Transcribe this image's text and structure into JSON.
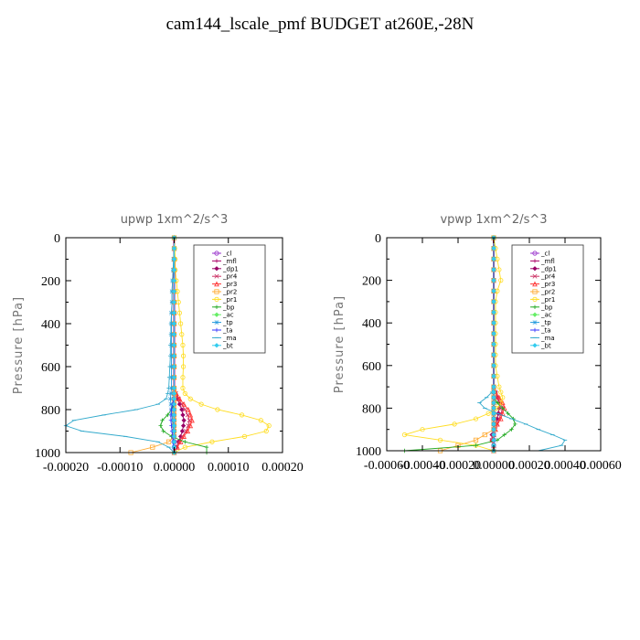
{
  "title": "cam144_lscale_pmf  BUDGET at260E,-28N",
  "legend_labels": [
    "_cl",
    "_mfl",
    "_dp1",
    "_pr4",
    "_pr3",
    "_pr2",
    "_pr1",
    "_bp",
    "_ac",
    "_tp",
    "_ta",
    "_ma",
    "_bt"
  ],
  "legend_colors": [
    "#9933cc",
    "#aa0066",
    "#990066",
    "#cc3366",
    "#ff3333",
    "#ffaa33",
    "#ffdd22",
    "#22aa22",
    "#66ee66",
    "#2299dd",
    "#3333ff",
    "#33aacc",
    "#33ccee"
  ],
  "chart_data": [
    {
      "type": "line",
      "title": "upwp   1xm^2/s^3",
      "ylabel": "Pressure [hPa]",
      "xlim": [
        -0.0002,
        0.0002
      ],
      "ylim": [
        1000,
        0
      ],
      "xticks": [
        "-0.00020",
        "-0.00010",
        "0.00000",
        "0.00010",
        "0.00020"
      ],
      "yticks": [
        "0",
        "200",
        "400",
        "600",
        "800",
        "1000"
      ],
      "p": [
        0,
        50,
        100,
        150,
        200,
        250,
        300,
        350,
        400,
        450,
        500,
        550,
        600,
        650,
        700,
        725,
        750,
        775,
        800,
        825,
        850,
        875,
        900,
        925,
        950,
        975,
        1000
      ],
      "series": [
        {
          "key": "cl",
          "x": [
            0,
            0,
            0,
            0,
            0,
            0,
            0,
            0,
            0,
            0,
            0,
            0,
            0,
            0,
            0,
            0,
            0,
            0,
            0,
            0,
            0,
            0,
            0,
            0,
            0,
            0,
            0
          ]
        },
        {
          "key": "mfl",
          "x": [
            0,
            0,
            0,
            0,
            0,
            0,
            0,
            0,
            0,
            0,
            0,
            0,
            0,
            0,
            0,
            0,
            0,
            0,
            0,
            0,
            0,
            0,
            0,
            0,
            0,
            0,
            0
          ]
        },
        {
          "key": "dp1",
          "x": [
            0,
            0,
            0,
            0,
            0,
            0,
            0,
            0,
            0,
            0,
            0,
            0,
            0,
            0,
            0,
            2e-06,
            6e-06,
            1e-05,
            1.4e-05,
            1.6e-05,
            1.8e-05,
            1.7e-05,
            1.5e-05,
            1.2e-05,
            8e-06,
            4e-06,
            0
          ]
        },
        {
          "key": "pr4",
          "x": [
            0,
            0,
            0,
            0,
            0,
            0,
            0,
            0,
            0,
            0,
            0,
            0,
            0,
            0,
            0,
            3e-06,
            8e-06,
            1.4e-05,
            2e-05,
            2.5e-05,
            2.8e-05,
            2.6e-05,
            2.2e-05,
            1.5e-05,
            9e-06,
            4e-06,
            0
          ]
        },
        {
          "key": "pr3",
          "x": [
            0,
            0,
            0,
            0,
            0,
            0,
            0,
            0,
            0,
            0,
            0,
            0,
            0,
            0,
            0,
            4e-06,
            1e-05,
            1.8e-05,
            2.6e-05,
            3e-05,
            3.3e-05,
            3e-05,
            2.5e-05,
            1.8e-05,
            1.2e-05,
            6e-06,
            0
          ]
        },
        {
          "key": "pr2",
          "x": [
            0,
            0,
            0,
            0,
            0,
            0,
            0,
            0,
            0,
            0,
            0,
            0,
            0,
            0,
            0,
            0,
            0,
            0,
            0,
            0,
            0,
            0,
            0,
            0,
            -1e-05,
            -4e-05,
            -8e-05
          ]
        },
        {
          "key": "pr1",
          "x": [
            0,
            1e-06,
            2e-06,
            2e-06,
            4e-06,
            6e-06,
            8e-06,
            1e-05,
            1.2e-05,
            1.4e-05,
            1.6e-05,
            1.7e-05,
            1.7e-05,
            1.6e-05,
            1.6e-05,
            2e-05,
            3e-05,
            5e-05,
            8e-05,
            0.000125,
            0.00016,
            0.000175,
            0.00017,
            0.00013,
            7e-05,
            2e-05,
            0
          ]
        },
        {
          "key": "bp",
          "x": [
            0,
            0,
            0,
            0,
            0,
            0,
            0,
            0,
            0,
            0,
            0,
            0,
            0,
            0,
            0,
            0,
            0,
            0,
            -5e-06,
            -1.2e-05,
            -2.2e-05,
            -2.5e-05,
            -2e-05,
            -5e-06,
            2e-05,
            6e-05,
            6e-05
          ]
        },
        {
          "key": "ac",
          "x": [
            0,
            0,
            0,
            0,
            0,
            0,
            0,
            0,
            0,
            0,
            0,
            0,
            0,
            0,
            0,
            0,
            0,
            0,
            0,
            0,
            0,
            0,
            0,
            0,
            0,
            0,
            0
          ]
        },
        {
          "key": "tp",
          "x": [
            0,
            0,
            -1e-06,
            -2e-06,
            -3e-06,
            -4e-06,
            -4e-06,
            -5e-06,
            -5e-06,
            -5e-06,
            -5e-06,
            -5e-06,
            -5e-06,
            -5e-06,
            -5e-06,
            -6e-06,
            -7e-06,
            -6e-06,
            -5e-06,
            -4e-06,
            -3e-06,
            -2e-06,
            -1e-06,
            0,
            0,
            0,
            0
          ]
        },
        {
          "key": "ta",
          "x": [
            0,
            0,
            0,
            0,
            0,
            0,
            0,
            0,
            0,
            0,
            0,
            0,
            0,
            0,
            0,
            0,
            -1e-06,
            -3e-06,
            -5e-06,
            -6e-06,
            -6e-06,
            -5e-06,
            -4e-06,
            -3e-06,
            -2e-06,
            -1e-06,
            0
          ]
        },
        {
          "key": "ma",
          "x": [
            0,
            0,
            -1e-06,
            -2e-06,
            -3e-06,
            -4e-06,
            -4e-06,
            -5e-06,
            -6e-06,
            -6e-06,
            -7e-06,
            -7e-06,
            -8e-06,
            -9e-06,
            -1e-05,
            -1.2e-05,
            -1.5e-05,
            -3e-05,
            -7e-05,
            -0.00013,
            -0.000185,
            -0.0002,
            -0.00017,
            -9e-05,
            -3e-05,
            -1e-05,
            0
          ]
        },
        {
          "key": "bt",
          "x": [
            0,
            0,
            0,
            0,
            0,
            0,
            0,
            0,
            0,
            0,
            0,
            0,
            0,
            0,
            0,
            0,
            0,
            0,
            0,
            0,
            0,
            0,
            0,
            0,
            0,
            0,
            0
          ]
        }
      ]
    },
    {
      "type": "line",
      "title": "vpwp   1xm^2/s^3",
      "ylabel": "Pressure [hPa]",
      "xlim": [
        -0.0006,
        0.0006
      ],
      "ylim": [
        1000,
        0
      ],
      "xticks": [
        "-0.00060",
        "-0.00040",
        "-0.00020",
        "0.00000",
        "0.00020",
        "0.00040",
        "0.00060"
      ],
      "yticks": [
        "0",
        "200",
        "400",
        "600",
        "800",
        "1000"
      ],
      "p": [
        0,
        50,
        100,
        150,
        200,
        250,
        300,
        350,
        400,
        450,
        500,
        550,
        600,
        650,
        700,
        725,
        750,
        775,
        800,
        825,
        850,
        875,
        900,
        925,
        950,
        975,
        1000
      ],
      "series": [
        {
          "key": "cl",
          "x": [
            0,
            0,
            0,
            0,
            0,
            0,
            0,
            0,
            0,
            0,
            0,
            0,
            0,
            0,
            0,
            0,
            0,
            0,
            0,
            0,
            0,
            0,
            0,
            0,
            0,
            0,
            0
          ]
        },
        {
          "key": "mfl",
          "x": [
            0,
            0,
            0,
            0,
            0,
            0,
            0,
            0,
            0,
            0,
            0,
            0,
            0,
            0,
            0,
            0,
            0,
            0,
            0,
            0,
            0,
            0,
            0,
            0,
            0,
            0,
            0
          ]
        },
        {
          "key": "dp1",
          "x": [
            0,
            0,
            0,
            0,
            0,
            0,
            0,
            0,
            0,
            0,
            0,
            0,
            0,
            0,
            0,
            1e-05,
            2e-05,
            3e-05,
            3e-05,
            2.5e-05,
            2e-05,
            1e-05,
            0,
            -1e-05,
            -1e-05,
            0,
            0
          ]
        },
        {
          "key": "pr4",
          "x": [
            0,
            0,
            0,
            0,
            0,
            0,
            0,
            0,
            0,
            0,
            0,
            0,
            0,
            0,
            0,
            1e-05,
            2e-05,
            4e-05,
            5e-05,
            4e-05,
            3e-05,
            2e-05,
            1e-05,
            0,
            -1e-05,
            0,
            0
          ]
        },
        {
          "key": "pr3",
          "x": [
            0,
            0,
            0,
            0,
            0,
            0,
            0,
            0,
            0,
            0,
            0,
            0,
            0,
            0,
            0,
            1e-05,
            3e-05,
            5e-05,
            6e-05,
            5e-05,
            4e-05,
            2e-05,
            1e-05,
            0,
            -1e-05,
            0,
            0
          ]
        },
        {
          "key": "pr2",
          "x": [
            0,
            0,
            0,
            0,
            0,
            0,
            0,
            0,
            0,
            0,
            0,
            0,
            0,
            0,
            0,
            0,
            0,
            0,
            0,
            0,
            0,
            0,
            0,
            -5e-05,
            -0.0001,
            -0.0002,
            -0.0003
          ]
        },
        {
          "key": "pr1",
          "x": [
            0,
            1e-05,
            2e-05,
            3e-05,
            4e-05,
            2e-05,
            1e-05,
            1e-05,
            1e-05,
            1e-05,
            1e-05,
            1e-05,
            1e-05,
            2e-05,
            3e-05,
            4e-05,
            5e-05,
            4e-05,
            2e-05,
            -3e-05,
            -0.0001,
            -0.00022,
            -0.0004,
            -0.0005,
            -0.0003,
            -0.0001,
            0
          ]
        },
        {
          "key": "bp",
          "x": [
            0,
            0,
            0,
            0,
            0,
            0,
            0,
            0,
            0,
            0,
            0,
            0,
            0,
            0,
            0,
            0,
            0,
            2e-05,
            5e-05,
            8e-05,
            0.00011,
            0.00012,
            0.0001,
            6e-05,
            2e-05,
            -0.0001,
            -0.0005
          ]
        },
        {
          "key": "ac",
          "x": [
            0,
            0,
            0,
            0,
            0,
            0,
            0,
            0,
            0,
            0,
            0,
            0,
            0,
            0,
            0,
            0,
            0,
            0,
            0,
            0,
            0,
            0,
            0,
            0,
            0,
            0,
            0
          ]
        },
        {
          "key": "tp",
          "x": [
            0,
            0,
            0,
            0,
            0,
            0,
            0,
            0,
            0,
            0,
            0,
            0,
            0,
            0,
            0,
            0,
            0,
            0,
            0,
            0,
            0,
            0,
            0,
            0,
            0,
            0,
            0
          ]
        },
        {
          "key": "ta",
          "x": [
            0,
            0,
            0,
            0,
            0,
            0,
            0,
            0,
            0,
            0,
            0,
            0,
            0,
            0,
            0,
            0,
            0,
            0,
            0,
            0,
            0,
            0,
            0,
            0,
            0,
            0,
            0
          ]
        },
        {
          "key": "ma",
          "x": [
            0,
            0,
            0,
            0,
            0,
            0,
            0,
            0,
            0,
            0,
            0,
            0,
            0,
            0,
            0,
            -1e-05,
            -4e-05,
            -8e-05,
            -5e-05,
            2e-05,
            0.0001,
            0.00018,
            0.00025,
            0.00033,
            0.0004,
            0.00038,
            0.00025
          ]
        },
        {
          "key": "bt",
          "x": [
            0,
            0,
            0,
            0,
            0,
            0,
            0,
            0,
            0,
            0,
            0,
            0,
            0,
            0,
            0,
            0,
            0,
            0,
            0,
            0,
            0,
            0,
            0,
            0,
            0,
            0,
            0
          ]
        }
      ]
    }
  ]
}
